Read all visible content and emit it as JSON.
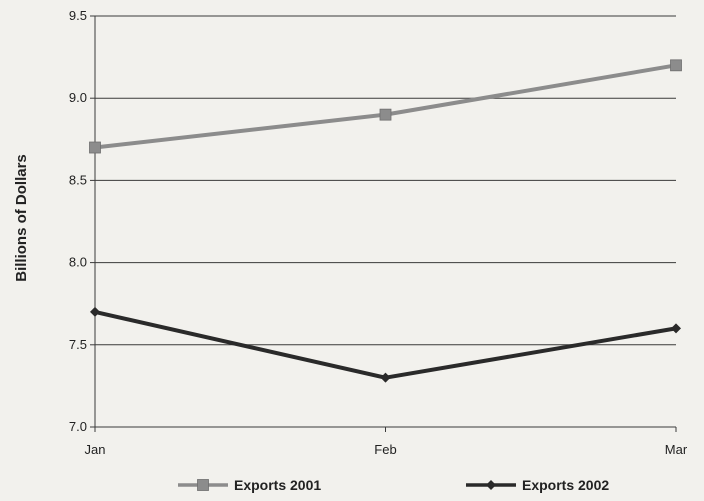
{
  "chart_data": {
    "type": "line",
    "title": "",
    "xlabel": "",
    "ylabel": "Billions of Dollars",
    "categories": [
      "Jan",
      "Feb",
      "Mar"
    ],
    "ylim": [
      7.0,
      9.5
    ],
    "yticks": [
      "7.0",
      "7.5",
      "8.0",
      "8.5",
      "9.0",
      "9.5"
    ],
    "grid": true,
    "legend_position": "bottom",
    "series": [
      {
        "name": "Exports 2001",
        "values": [
          8.7,
          8.9,
          9.2
        ],
        "color": "#8c8c8c",
        "marker": "square"
      },
      {
        "name": "Exports 2002",
        "values": [
          7.7,
          7.3,
          7.6
        ],
        "color": "#2a2a2a",
        "marker": "diamond"
      }
    ]
  }
}
